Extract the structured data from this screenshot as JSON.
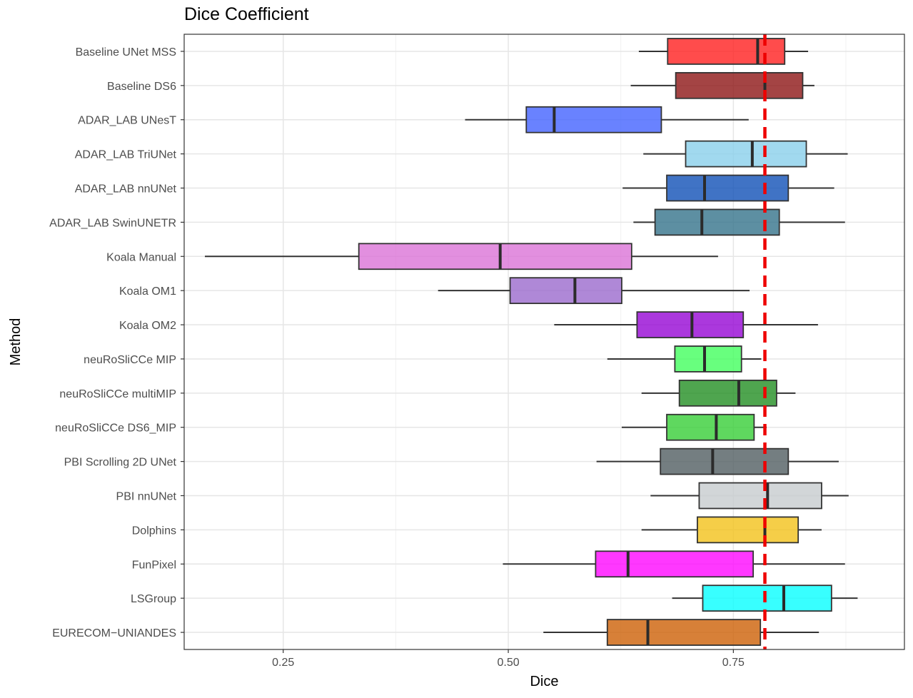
{
  "chart_data": {
    "type": "boxplot",
    "title": "Dice Coefficient",
    "xlabel": "Dice",
    "ylabel": "Method",
    "xlim": [
      0.14,
      0.94
    ],
    "xticks": [
      0.25,
      0.5,
      0.75
    ],
    "xtick_labels": [
      "0.25",
      "0.50",
      "0.75"
    ],
    "grid": true,
    "reference_line": {
      "x": 0.785,
      "style": "dashed",
      "color": "#ee0000"
    },
    "series": [
      {
        "name": "Baseline UNet MSS",
        "whisker_low": 0.645,
        "q1": 0.677,
        "median": 0.777,
        "q3": 0.807,
        "whisker_high": 0.833,
        "color": "#ff1a1a"
      },
      {
        "name": "Baseline DS6",
        "whisker_low": 0.636,
        "q1": 0.686,
        "median": 0.785,
        "q3": 0.827,
        "whisker_high": 0.84,
        "color": "#8b0f0f"
      },
      {
        "name": "ADAR_LAB UNesT",
        "whisker_low": 0.452,
        "q1": 0.52,
        "median": 0.551,
        "q3": 0.67,
        "whisker_high": 0.767,
        "color": "#3f5fff"
      },
      {
        "name": "ADAR_LAB TriUNet",
        "whisker_low": 0.65,
        "q1": 0.697,
        "median": 0.771,
        "q3": 0.831,
        "whisker_high": 0.877,
        "color": "#87ceeb"
      },
      {
        "name": "ADAR_LAB nnUNet",
        "whisker_low": 0.627,
        "q1": 0.676,
        "median": 0.718,
        "q3": 0.811,
        "whisker_high": 0.862,
        "color": "#0a4bb5"
      },
      {
        "name": "ADAR_LAB SwinUNETR",
        "whisker_low": 0.639,
        "q1": 0.663,
        "median": 0.715,
        "q3": 0.801,
        "whisker_high": 0.874,
        "color": "#2f6f88"
      },
      {
        "name": "Koala Manual",
        "whisker_low": 0.163,
        "q1": 0.334,
        "median": 0.491,
        "q3": 0.637,
        "whisker_high": 0.733,
        "color": "#da70d6"
      },
      {
        "name": "Koala OM1",
        "whisker_low": 0.422,
        "q1": 0.502,
        "median": 0.574,
        "q3": 0.626,
        "whisker_high": 0.768,
        "color": "#9966cc"
      },
      {
        "name": "Koala OM2",
        "whisker_low": 0.551,
        "q1": 0.643,
        "median": 0.704,
        "q3": 0.761,
        "whisker_high": 0.844,
        "color": "#9400d3"
      },
      {
        "name": "neuRoSliCCe MIP",
        "whisker_low": 0.61,
        "q1": 0.685,
        "median": 0.718,
        "q3": 0.759,
        "whisker_high": 0.781,
        "color": "#3dff5a"
      },
      {
        "name": "neuRoSliCCe multiMIP",
        "whisker_low": 0.648,
        "q1": 0.69,
        "median": 0.756,
        "q3": 0.798,
        "whisker_high": 0.819,
        "color": "#1e8c1e"
      },
      {
        "name": "neuRoSliCCe DS6_MIP",
        "whisker_low": 0.626,
        "q1": 0.676,
        "median": 0.731,
        "q3": 0.773,
        "whisker_high": 0.787,
        "color": "#32cd32"
      },
      {
        "name": "PBI Scrolling 2D UNet",
        "whisker_low": 0.598,
        "q1": 0.669,
        "median": 0.727,
        "q3": 0.811,
        "whisker_high": 0.867,
        "color": "#4d5a5d"
      },
      {
        "name": "PBI nnUNet",
        "whisker_low": 0.658,
        "q1": 0.712,
        "median": 0.788,
        "q3": 0.848,
        "whisker_high": 0.878,
        "color": "#c5cacd"
      },
      {
        "name": "Dolphins",
        "whisker_low": 0.648,
        "q1": 0.71,
        "median": 0.785,
        "q3": 0.822,
        "whisker_high": 0.848,
        "color": "#f2c014"
      },
      {
        "name": "FunPixel",
        "whisker_low": 0.494,
        "q1": 0.597,
        "median": 0.633,
        "q3": 0.772,
        "whisker_high": 0.874,
        "color": "#ff00ff"
      },
      {
        "name": "LSGroup",
        "whisker_low": 0.682,
        "q1": 0.716,
        "median": 0.806,
        "q3": 0.859,
        "whisker_high": 0.888,
        "color": "#00ffff"
      },
      {
        "name": "EURECOM−UNIANDES",
        "whisker_low": 0.539,
        "q1": 0.61,
        "median": 0.655,
        "q3": 0.78,
        "whisker_high": 0.845,
        "color": "#cc5c00"
      }
    ]
  }
}
